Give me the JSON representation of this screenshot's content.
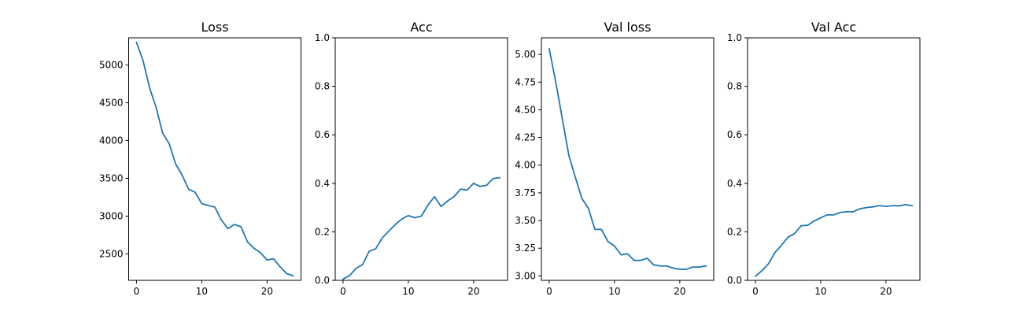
{
  "chart_data": [
    {
      "type": "line",
      "title": "Loss",
      "xlabel": "",
      "ylabel": "",
      "xlim": [
        -1.2,
        25.2
      ],
      "ylim": [
        2150,
        5360
      ],
      "xticks": [
        0,
        10,
        20
      ],
      "yticks": [
        2500,
        3000,
        3500,
        4000,
        4500,
        5000
      ],
      "ytick_labels": [
        "2500",
        "3000",
        "3500",
        "4000",
        "4500",
        "5000"
      ],
      "grid": false,
      "color": "#1f77b4",
      "series": [
        {
          "x": [
            0,
            1,
            2,
            3,
            4,
            5,
            6,
            7,
            8,
            9,
            10,
            11,
            12,
            13,
            14,
            15,
            16,
            17,
            18,
            19,
            20,
            21,
            22,
            23,
            24
          ],
          "values": [
            5300,
            5060,
            4700,
            4440,
            4100,
            3960,
            3690,
            3540,
            3355,
            3315,
            3165,
            3140,
            3120,
            2950,
            2835,
            2890,
            2860,
            2660,
            2575,
            2515,
            2420,
            2435,
            2330,
            2240,
            2210
          ]
        }
      ]
    },
    {
      "type": "line",
      "title": "Acc",
      "xlabel": "",
      "ylabel": "",
      "xlim": [
        -1.2,
        25.2
      ],
      "ylim": [
        0.0,
        1.0
      ],
      "xticks": [
        0,
        10,
        20
      ],
      "yticks": [
        0.0,
        0.2,
        0.4,
        0.6,
        0.8,
        1.0
      ],
      "ytick_labels": [
        "0.0",
        "0.2",
        "0.4",
        "0.6",
        "0.8",
        "1.0"
      ],
      "grid": false,
      "color": "#1f77b4",
      "series": [
        {
          "x": [
            0,
            1,
            2,
            3,
            4,
            5,
            6,
            7,
            8,
            9,
            10,
            11,
            12,
            13,
            14,
            15,
            16,
            17,
            18,
            19,
            20,
            21,
            22,
            23,
            24
          ],
          "values": [
            0.005,
            0.02,
            0.05,
            0.065,
            0.12,
            0.13,
            0.175,
            0.203,
            0.23,
            0.253,
            0.267,
            0.258,
            0.265,
            0.31,
            0.345,
            0.305,
            0.327,
            0.345,
            0.376,
            0.372,
            0.4,
            0.387,
            0.392,
            0.42,
            0.423
          ]
        }
      ]
    },
    {
      "type": "line",
      "title": "Val loss",
      "xlabel": "",
      "ylabel": "",
      "xlim": [
        -1.2,
        25.2
      ],
      "ylim": [
        2.96,
        5.15
      ],
      "xticks": [
        0,
        10,
        20
      ],
      "yticks": [
        3.0,
        3.25,
        3.5,
        3.75,
        4.0,
        4.25,
        4.5,
        4.75,
        5.0
      ],
      "ytick_labels": [
        "3.00",
        "3.25",
        "3.50",
        "3.75",
        "4.00",
        "4.25",
        "4.50",
        "4.75",
        "5.00"
      ],
      "grid": false,
      "color": "#1f77b4",
      "series": [
        {
          "x": [
            0,
            1,
            2,
            3,
            4,
            5,
            6,
            7,
            8,
            9,
            10,
            11,
            12,
            13,
            14,
            15,
            16,
            17,
            18,
            19,
            20,
            21,
            22,
            23,
            24
          ],
          "values": [
            5.05,
            4.75,
            4.42,
            4.09,
            3.89,
            3.7,
            3.61,
            3.42,
            3.42,
            3.31,
            3.27,
            3.19,
            3.2,
            3.14,
            3.14,
            3.16,
            3.1,
            3.09,
            3.09,
            3.07,
            3.06,
            3.06,
            3.08,
            3.08,
            3.09
          ]
        }
      ]
    },
    {
      "type": "line",
      "title": "Val Acc",
      "xlabel": "",
      "ylabel": "",
      "xlim": [
        -1.2,
        25.2
      ],
      "ylim": [
        0.0,
        1.0
      ],
      "xticks": [
        0,
        10,
        20
      ],
      "yticks": [
        0.0,
        0.2,
        0.4,
        0.6,
        0.8,
        1.0
      ],
      "ytick_labels": [
        "0.0",
        "0.2",
        "0.4",
        "0.6",
        "0.8",
        "1.0"
      ],
      "grid": false,
      "color": "#1f77b4",
      "series": [
        {
          "x": [
            0,
            1,
            2,
            3,
            4,
            5,
            6,
            7,
            8,
            9,
            10,
            11,
            12,
            13,
            14,
            15,
            16,
            17,
            18,
            19,
            20,
            21,
            22,
            23,
            24
          ],
          "values": [
            0.017,
            0.04,
            0.068,
            0.115,
            0.145,
            0.178,
            0.193,
            0.225,
            0.227,
            0.245,
            0.258,
            0.27,
            0.27,
            0.28,
            0.283,
            0.283,
            0.295,
            0.3,
            0.303,
            0.308,
            0.305,
            0.308,
            0.307,
            0.312,
            0.308
          ]
        }
      ]
    }
  ]
}
